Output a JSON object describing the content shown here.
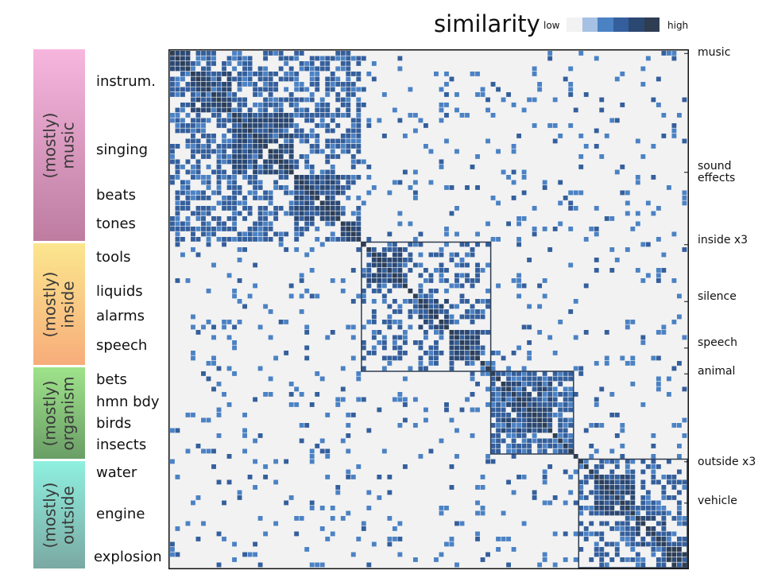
{
  "chart_data": {
    "type": "heatmap",
    "title": "similarity",
    "colorbar": {
      "low_label": "low",
      "high_label": "high",
      "colors": [
        "#f2f2f2",
        "#a7c1e4",
        "#4b82c4",
        "#345f9c",
        "#2b4873",
        "#2e3d52"
      ]
    },
    "matrix_size": 100,
    "value_range": [
      0,
      5
    ],
    "background_value": 0,
    "blocks": [
      {
        "start": 0,
        "end": 37,
        "level": 3,
        "density": 0.32
      },
      {
        "start": 0,
        "end": 4,
        "level": 4,
        "density": 0.85
      },
      {
        "start": 4,
        "end": 12,
        "level": 4,
        "density": 0.6
      },
      {
        "start": 12,
        "end": 24,
        "level": 4,
        "density": 0.55
      },
      {
        "start": 24,
        "end": 33,
        "level": 4,
        "density": 0.6
      },
      {
        "start": 33,
        "end": 37,
        "level": 4,
        "density": 0.65
      },
      {
        "start": 37,
        "end": 62,
        "level": 3,
        "density": 0.2
      },
      {
        "start": 38,
        "end": 45,
        "level": 4,
        "density": 0.55
      },
      {
        "start": 48,
        "end": 54,
        "level": 4,
        "density": 0.6
      },
      {
        "start": 54,
        "end": 60,
        "level": 4,
        "density": 0.55
      },
      {
        "start": 62,
        "end": 78,
        "level": 3,
        "density": 0.55
      },
      {
        "start": 64,
        "end": 74,
        "level": 4,
        "density": 0.45
      },
      {
        "start": 79,
        "end": 100,
        "level": 3,
        "density": 0.3
      },
      {
        "start": 82,
        "end": 90,
        "level": 4,
        "density": 0.5
      },
      {
        "start": 90,
        "end": 96,
        "level": 4,
        "density": 0.55
      },
      {
        "start": 96,
        "end": 100,
        "level": 5,
        "density": 0.7
      }
    ],
    "outlined_blocks": [
      {
        "start": 37,
        "end": 62
      },
      {
        "start": 62,
        "end": 78
      },
      {
        "start": 79,
        "end": 100
      }
    ],
    "noise_density": 0.045,
    "diagonal_value": 5,
    "row_groups": [
      {
        "label": "(mostly)\nmusic",
        "color_top": "#f7b6de",
        "color_bottom": "#bd7ca0",
        "start": 0,
        "end": 37
      },
      {
        "label": "(mostly)\ninside",
        "color_top": "#fbe68e",
        "color_bottom": "#f7ad7a",
        "start": 37,
        "end": 61
      },
      {
        "label": "(mostly)\norganism",
        "color_top": "#9fe38b",
        "color_bottom": "#6a9e66",
        "start": 61,
        "end": 79
      },
      {
        "label": "(mostly)\noutside",
        "color_top": "#8ff0e0",
        "color_bottom": "#7aa9a2",
        "start": 79,
        "end": 100
      }
    ],
    "row_labels": [
      {
        "text": "instrum.",
        "at": 6
      },
      {
        "text": "singing",
        "at": 19
      },
      {
        "text": "beats",
        "at": 28
      },
      {
        "text": "tones",
        "at": 34
      },
      {
        "text": "tools",
        "at": 40
      },
      {
        "text": "liquids",
        "at": 46
      },
      {
        "text": "alarms",
        "at": 51
      },
      {
        "text": "speech",
        "at": 57
      },
      {
        "text": "bets",
        "at": 63
      },
      {
        "text": "hmn bdy",
        "at": 68
      },
      {
        "text": "birds",
        "at": 72
      },
      {
        "text": "insects",
        "at": 76
      },
      {
        "text": "water",
        "at": 81
      },
      {
        "text": "engine",
        "at": 89
      },
      {
        "text": "explosion",
        "at": 98
      }
    ],
    "column_labels": [
      {
        "text": "music",
        "at": 0
      },
      {
        "text": "sound\neffects",
        "at": 23
      },
      {
        "text": "inside x3",
        "at": 37
      },
      {
        "text": "silence",
        "at": 48
      },
      {
        "text": "speech",
        "at": 57
      },
      {
        "text": "animal",
        "at": 62
      },
      {
        "text": "outside x3",
        "at": 79
      },
      {
        "text": "vehicle",
        "at": 87
      }
    ]
  }
}
